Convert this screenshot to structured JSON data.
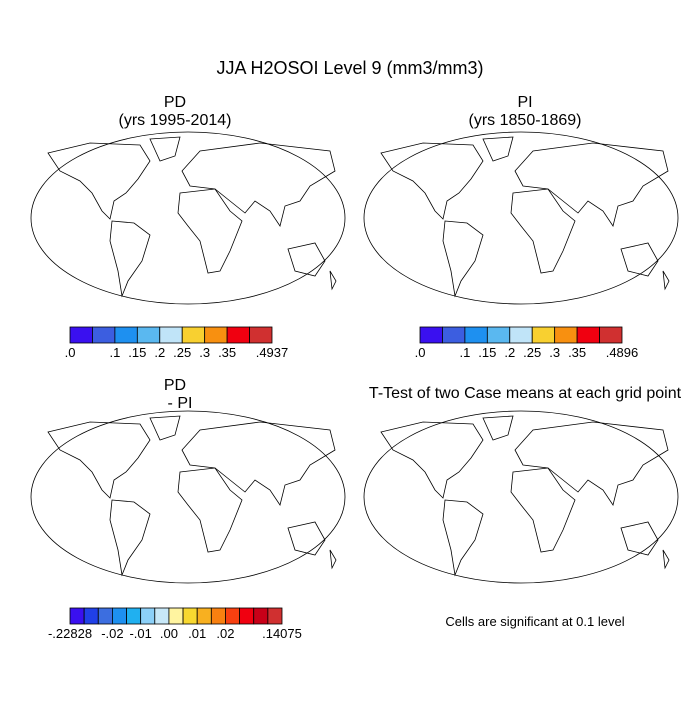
{
  "title": "JJA H2OSOI Level 9 (mm3/mm3)",
  "panels": [
    {
      "title": "PD",
      "subtitle": "(yrs 1995-2014)"
    },
    {
      "title": "PI",
      "subtitle": "(yrs 1850-1869)"
    },
    {
      "title": "PD",
      "subtitle": "- PI"
    },
    {
      "title": "T-Test of two Case means at each grid point"
    }
  ],
  "colorbars": [
    {
      "colors": [
        "#3a10f0",
        "#3c5ee0",
        "#1e90f0",
        "#5ab8f0",
        "#c0e4f8",
        "#f8d030",
        "#f89010",
        "#f00010",
        "#d03030"
      ],
      "labels": [
        ".0",
        ".1",
        ".15",
        ".2",
        ".25",
        ".3",
        ".35",
        ".4937"
      ]
    },
    {
      "colors": [
        "#3a10f0",
        "#3c5ee0",
        "#1e90f0",
        "#5ab8f0",
        "#c0e4f8",
        "#f8d030",
        "#f89010",
        "#f00010",
        "#d03030"
      ],
      "labels": [
        ".0",
        ".1",
        ".15",
        ".2",
        ".25",
        ".3",
        ".35",
        ".4896"
      ]
    },
    {
      "colors": [
        "#3a10f0",
        "#2040e8",
        "#3c6ee0",
        "#1e90f0",
        "#20b0f0",
        "#8cd0f8",
        "#c8e8f8",
        "#fff4a0",
        "#f8d830",
        "#f8b020",
        "#f88010",
        "#f84010",
        "#f00010",
        "#c80018",
        "#d03030"
      ],
      "labels": [
        "-.22828",
        "-.02",
        "-.01",
        ".00",
        ".01",
        ".02",
        ".14075"
      ]
    }
  ],
  "note": "Cells are significant at 0.1 level"
}
